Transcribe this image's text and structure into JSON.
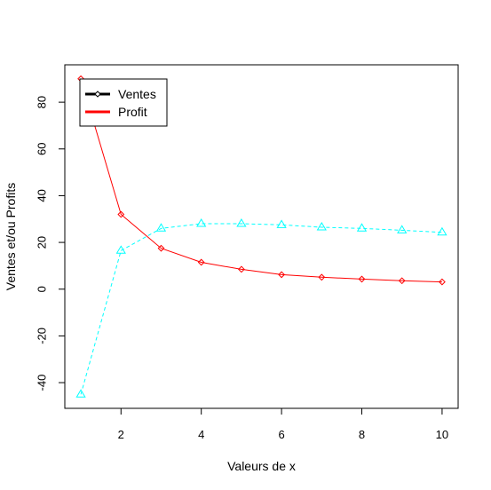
{
  "chart_data": {
    "type": "line",
    "xlabel": "Valeurs de x",
    "ylabel": "Ventes et/ou Profits",
    "xlim": [
      0.6,
      10.4
    ],
    "ylim": [
      -51,
      96
    ],
    "x_ticks": [
      2,
      4,
      6,
      8,
      10
    ],
    "y_ticks": [
      -40,
      -20,
      0,
      20,
      40,
      60,
      80
    ],
    "grid": false,
    "legend_position": "top-left",
    "legend": [
      {
        "label": "Ventes",
        "color": "#000000"
      },
      {
        "label": "Profit",
        "color": "#ff0000"
      }
    ],
    "series": [
      {
        "color": "#ff0000",
        "line_style": "solid",
        "marker": "diamond",
        "x": [
          1,
          2,
          3,
          4,
          5,
          6,
          7,
          8,
          9,
          10
        ],
        "values": [
          90,
          32,
          17.5,
          11.5,
          8.5,
          6.2,
          5.1,
          4.3,
          3.6,
          3.1
        ]
      },
      {
        "color": "#00ffff",
        "line_style": "dashed",
        "marker": "triangle",
        "x": [
          1,
          2,
          3,
          4,
          5,
          6,
          7,
          8,
          9,
          10
        ],
        "values": [
          -45,
          16.5,
          26,
          28,
          28,
          27.5,
          26.5,
          26,
          25.2,
          24.3
        ]
      }
    ]
  }
}
